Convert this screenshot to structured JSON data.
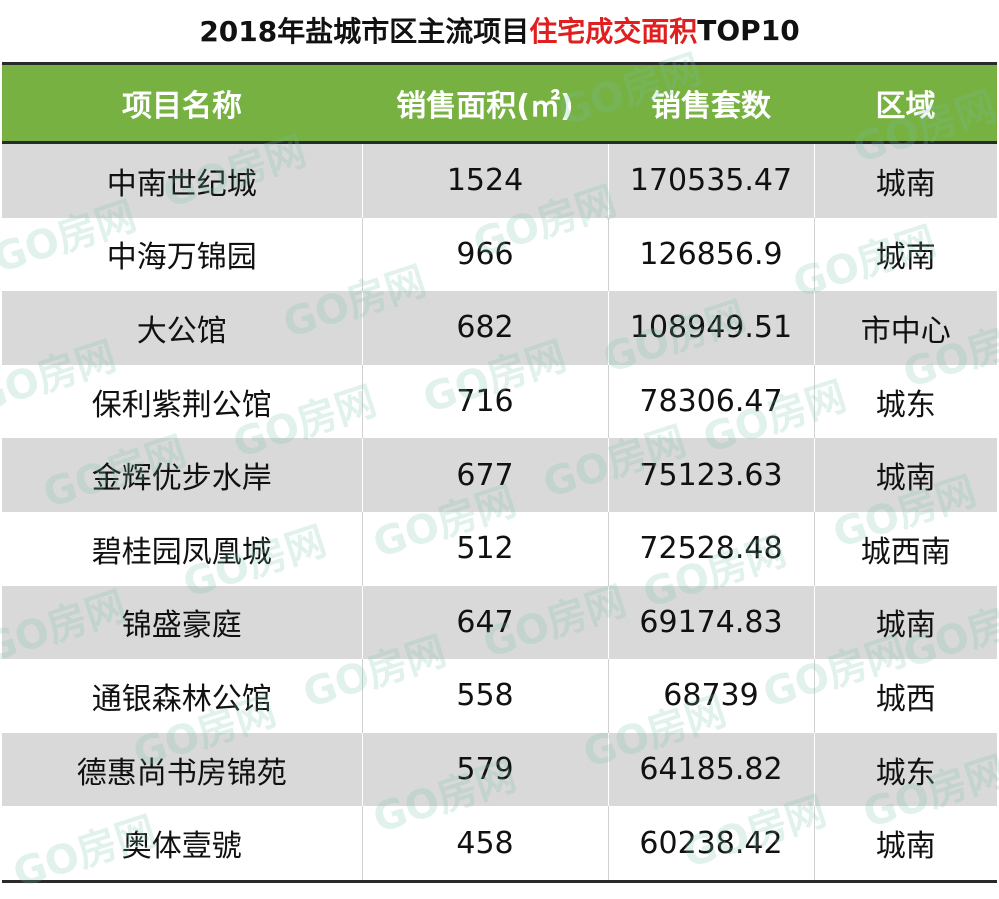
{
  "title": {
    "prefix": "2018年盐城市区主流项目",
    "highlight": "住宅成交面积",
    "suffix": "TOP10"
  },
  "table": {
    "headers": [
      "项目名称",
      "销售面积(㎡)",
      "销售套数",
      "区域"
    ],
    "rows": [
      [
        "中南世纪城",
        "1524",
        "170535.47",
        "城南"
      ],
      [
        "中海万锦园",
        "966",
        "126856.9",
        "城南"
      ],
      [
        "大公馆",
        "682",
        "108949.51",
        "市中心"
      ],
      [
        "保利紫荆公馆",
        "716",
        "78306.47",
        "城东"
      ],
      [
        "金辉优步水岸",
        "677",
        "75123.63",
        "城南"
      ],
      [
        "碧桂园凤凰城",
        "512",
        "72528.48",
        "城西南"
      ],
      [
        "锦盛豪庭",
        "647",
        "69174.83",
        "城南"
      ],
      [
        "通银森林公馆",
        "558",
        "68739",
        "城西"
      ],
      [
        "德惠尚书房锦苑",
        "579",
        "64185.82",
        "城东"
      ],
      [
        "奥体壹號",
        "458",
        "60238.42",
        "城南"
      ]
    ]
  },
  "watermark": {
    "text": "GO房网"
  }
}
